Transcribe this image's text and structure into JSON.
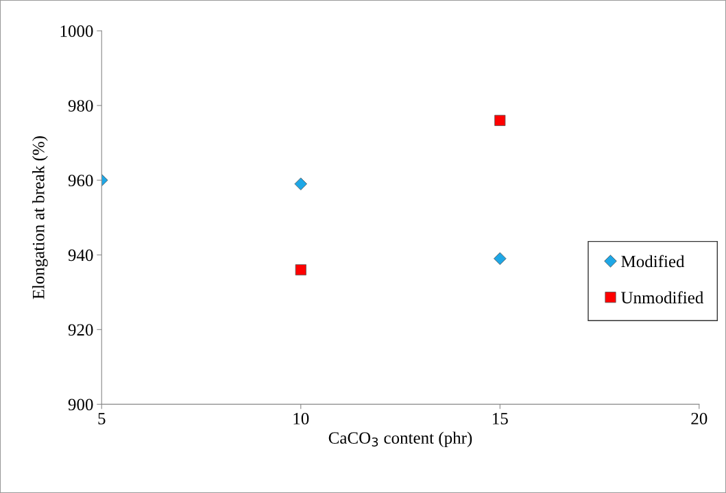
{
  "chart_data": {
    "type": "scatter",
    "xlabel": "CaCO$_{3}$ content (phr)",
    "ylabel": "Elongation at break (%)",
    "series": [
      {
        "name": "Modified",
        "color": "#1ea7e6",
        "marker": "diamond",
        "x": [
          5,
          10,
          15
        ],
        "values": [
          960,
          959,
          939
        ]
      },
      {
        "name": "Unmodified",
        "color": "#ff0000",
        "marker": "square",
        "x": [
          10,
          15
        ],
        "values": [
          936,
          976
        ]
      }
    ],
    "xlim": [
      5,
      20
    ],
    "xticks": [
      5,
      10,
      15,
      20
    ],
    "ylim": [
      900,
      1000
    ],
    "yticks": [
      900,
      920,
      940,
      960,
      980,
      1000
    ],
    "grid": false,
    "legend": "right"
  }
}
